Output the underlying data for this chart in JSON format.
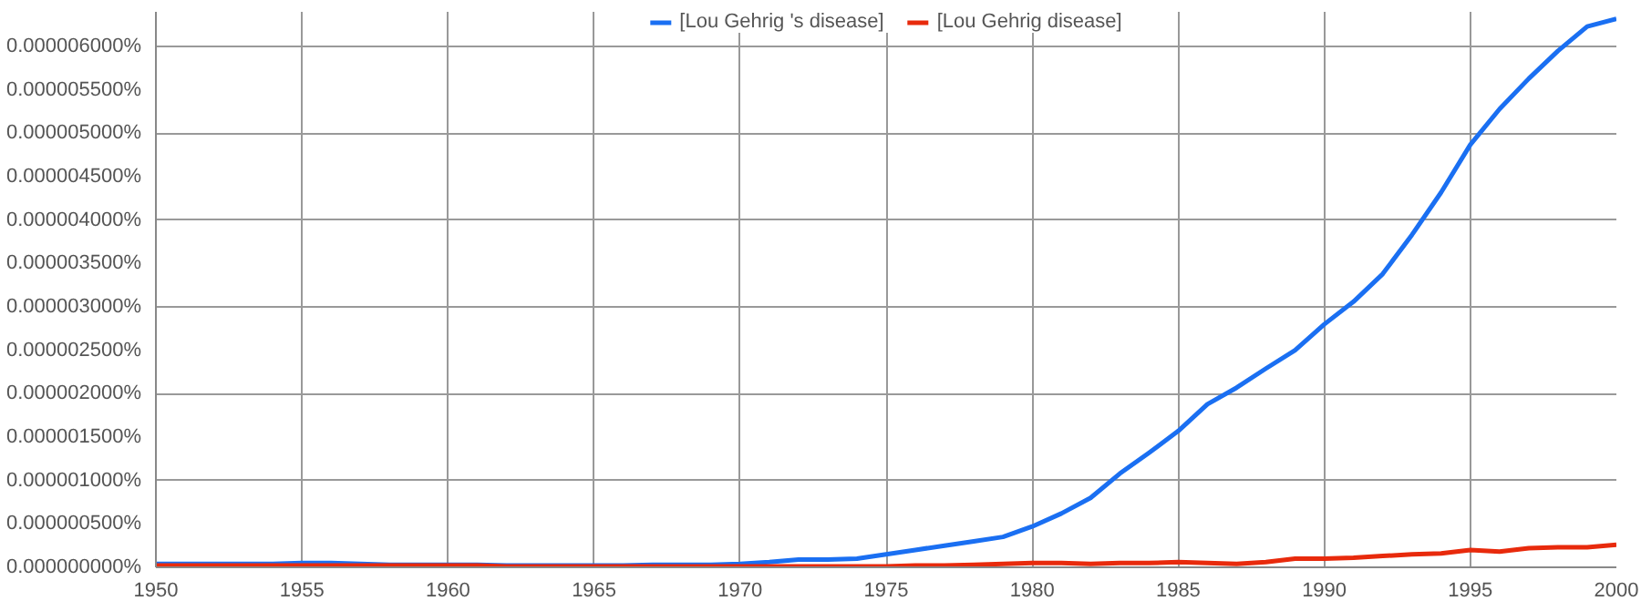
{
  "chart_data": {
    "type": "line",
    "legend": "top",
    "grid": true,
    "line_style": "solid",
    "x": [
      1950,
      1951,
      1952,
      1953,
      1954,
      1955,
      1956,
      1957,
      1958,
      1959,
      1960,
      1961,
      1962,
      1963,
      1964,
      1965,
      1966,
      1967,
      1968,
      1969,
      1970,
      1971,
      1972,
      1973,
      1974,
      1975,
      1976,
      1977,
      1978,
      1979,
      1980,
      1981,
      1982,
      1983,
      1984,
      1985,
      1986,
      1987,
      1988,
      1989,
      1990,
      1991,
      1992,
      1993,
      1994,
      1995,
      1996,
      1997,
      1998,
      1999,
      2000
    ],
    "xlim": [
      1950,
      2000
    ],
    "xticks": [
      1950,
      1955,
      1960,
      1965,
      1970,
      1975,
      1980,
      1985,
      1990,
      1995,
      2000
    ],
    "ylim": [
      0,
      6.4e-06
    ],
    "yticks": [
      {
        "value": 0,
        "label": "0.000000000%"
      },
      {
        "value": 5e-07,
        "label": "0.000000500%"
      },
      {
        "value": 1e-06,
        "label": "0.000001000%"
      },
      {
        "value": 1.5e-06,
        "label": "0.000001500%"
      },
      {
        "value": 2e-06,
        "label": "0.000002000%"
      },
      {
        "value": 2.5e-06,
        "label": "0.000002500%"
      },
      {
        "value": 3e-06,
        "label": "0.000003000%"
      },
      {
        "value": 3.5e-06,
        "label": "0.000003500%"
      },
      {
        "value": 4e-06,
        "label": "0.000004000%"
      },
      {
        "value": 4.5e-06,
        "label": "0.000004500%"
      },
      {
        "value": 5e-06,
        "label": "0.000005000%"
      },
      {
        "value": 5.5e-06,
        "label": "0.000005500%"
      },
      {
        "value": 6e-06,
        "label": "0.000006000%"
      }
    ],
    "series": [
      {
        "name": "[Lou Gehrig 's disease]",
        "color": "#1a6ff2",
        "values": [
          4e-08,
          4e-08,
          4e-08,
          4e-08,
          4e-08,
          5e-08,
          5e-08,
          4e-08,
          3e-08,
          3e-08,
          3e-08,
          3e-08,
          2e-08,
          2e-08,
          2e-08,
          2e-08,
          2e-08,
          3e-08,
          3e-08,
          3e-08,
          4e-08,
          6e-08,
          9e-08,
          9e-08,
          1e-07,
          1.5e-07,
          2e-07,
          2.5e-07,
          3e-07,
          3.5e-07,
          4.7e-07,
          6.2e-07,
          8e-07,
          1.08e-06,
          1.32e-06,
          1.57e-06,
          1.88e-06,
          2.07e-06,
          2.29e-06,
          2.5e-06,
          2.8e-06,
          3.06e-06,
          3.38e-06,
          3.83e-06,
          4.32e-06,
          4.87e-06,
          5.28e-06,
          5.63e-06,
          5.95e-06,
          6.23e-06,
          6.32e-06
        ]
      },
      {
        "name": "[Lou Gehrig disease]",
        "color": "#e82a0c",
        "values": [
          2e-08,
          2e-08,
          2e-08,
          2e-08,
          2e-08,
          2e-08,
          2e-08,
          2e-08,
          2e-08,
          2e-08,
          2e-08,
          2e-08,
          1e-08,
          1e-08,
          1e-08,
          1e-08,
          1e-08,
          1e-08,
          1e-08,
          1e-08,
          1e-08,
          1e-08,
          1e-08,
          1e-08,
          1e-08,
          1e-08,
          2e-08,
          2e-08,
          3e-08,
          4e-08,
          5e-08,
          5e-08,
          4e-08,
          5e-08,
          5e-08,
          6e-08,
          5e-08,
          4e-08,
          6e-08,
          1e-07,
          1e-07,
          1.1e-07,
          1.3e-07,
          1.5e-07,
          1.6e-07,
          2e-07,
          1.8e-07,
          2.2e-07,
          2.3e-07,
          2.3e-07,
          2.6e-07
        ]
      }
    ]
  }
}
